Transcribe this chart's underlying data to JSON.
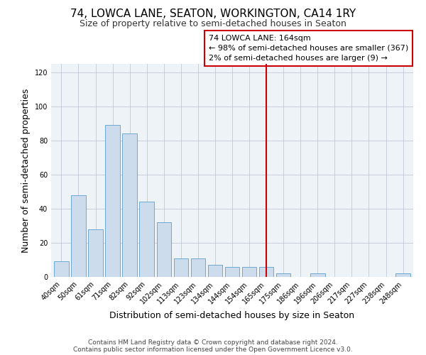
{
  "title": "74, LOWCA LANE, SEATON, WORKINGTON, CA14 1RY",
  "subtitle": "Size of property relative to semi-detached houses in Seaton",
  "xlabel": "Distribution of semi-detached houses by size in Seaton",
  "ylabel": "Number of semi-detached properties",
  "bar_labels": [
    "40sqm",
    "50sqm",
    "61sqm",
    "71sqm",
    "82sqm",
    "92sqm",
    "102sqm",
    "113sqm",
    "123sqm",
    "134sqm",
    "144sqm",
    "154sqm",
    "165sqm",
    "175sqm",
    "186sqm",
    "196sqm",
    "206sqm",
    "217sqm",
    "227sqm",
    "238sqm",
    "248sqm"
  ],
  "bar_values": [
    9,
    48,
    28,
    89,
    84,
    44,
    32,
    11,
    11,
    7,
    6,
    6,
    6,
    2,
    0,
    2,
    0,
    0,
    0,
    0,
    2
  ],
  "highlight_index": 12,
  "bar_color": "#ccdcec",
  "bar_edge_color": "#6aaad4",
  "highlight_line_color": "#cc0000",
  "annotation_line1": "74 LOWCA LANE: 164sqm",
  "annotation_line2": "← 98% of semi-detached houses are smaller (367)",
  "annotation_line3": "2% of semi-detached houses are larger (9) →",
  "ylim": [
    0,
    125
  ],
  "yticks": [
    0,
    20,
    40,
    60,
    80,
    100,
    120
  ],
  "footer_line1": "Contains HM Land Registry data © Crown copyright and database right 2024.",
  "footer_line2": "Contains public sector information licensed under the Open Government Licence v3.0.",
  "title_fontsize": 11,
  "subtitle_fontsize": 9,
  "axis_label_fontsize": 9,
  "tick_fontsize": 7,
  "annotation_fontsize": 8,
  "footer_fontsize": 6.5
}
